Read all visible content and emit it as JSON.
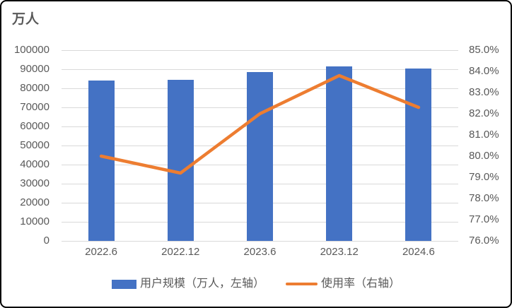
{
  "colors": {
    "bar_blue": "#4472C4",
    "line_orange": "#ED7D31",
    "axis_text": "#595959",
    "gridline": "#D9D9D9",
    "frame_border": "#000000",
    "background": "#FFFFFF"
  },
  "chart_data": {
    "type": "bar+line combo",
    "title": "万人",
    "categories": [
      "2022.6",
      "2022.12",
      "2023.6",
      "2023.12",
      "2024.6"
    ],
    "series": [
      {
        "name": "用户规模（万人，左轴）",
        "type": "bar",
        "axis": "left",
        "color": "#4472C4",
        "values": [
          84100,
          84500,
          88400,
          91500,
          90500
        ]
      },
      {
        "name": "使用率（右轴）",
        "type": "line",
        "axis": "right",
        "color": "#ED7D31",
        "values": [
          80.0,
          79.2,
          82.0,
          83.8,
          82.3
        ]
      }
    ],
    "left_axis": {
      "min": 0,
      "max": 100000,
      "step": 10000,
      "tick_labels": [
        "100000",
        "90000",
        "80000",
        "70000",
        "60000",
        "50000",
        "40000",
        "30000",
        "20000",
        "10000",
        "0"
      ]
    },
    "right_axis": {
      "min": 76,
      "max": 85,
      "step": 1,
      "tick_labels": [
        "85.0%",
        "84.0%",
        "83.0%",
        "82.0%",
        "81.0%",
        "80.0%",
        "79.0%",
        "78.0%",
        "77.0%",
        "76.0%"
      ]
    },
    "grid": true,
    "legend_position": "bottom"
  }
}
